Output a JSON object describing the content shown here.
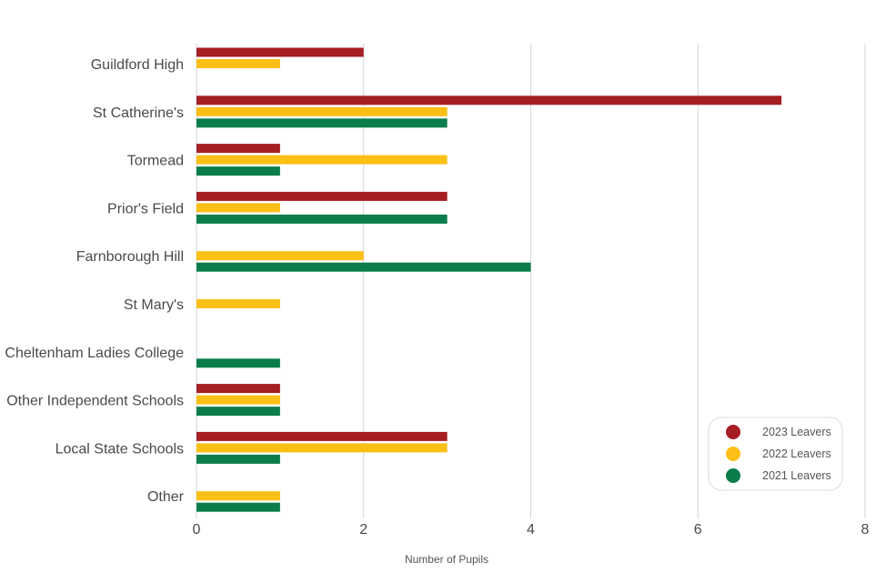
{
  "chart_data": {
    "type": "bar",
    "orientation": "horizontal",
    "categories": [
      "Guildford High",
      "St Catherine's",
      "Tormead",
      "Prior's Field",
      "Farnborough Hill",
      "St Mary's",
      "Cheltenham Ladies College",
      "Other Independent Schools",
      "Local State Schools",
      "Other"
    ],
    "series": [
      {
        "name": "2023 Leavers",
        "color": "#a51e22",
        "values": [
          2,
          7,
          1,
          3,
          0,
          0,
          0,
          1,
          3,
          0
        ]
      },
      {
        "name": "2022 Leavers",
        "color": "#fbbf16",
        "values": [
          1,
          3,
          3,
          1,
          2,
          1,
          0,
          1,
          3,
          1
        ]
      },
      {
        "name": "2021 Leavers",
        "color": "#0a7d4b",
        "values": [
          0,
          3,
          1,
          3,
          4,
          0,
          1,
          1,
          1,
          1
        ]
      }
    ],
    "xlabel": "Number of Pupils",
    "ylabel": "",
    "xlim": [
      0,
      8
    ],
    "xticks": [
      0,
      2,
      4,
      6,
      8
    ],
    "grid": "vertical",
    "legend_position": "bottom-right"
  }
}
